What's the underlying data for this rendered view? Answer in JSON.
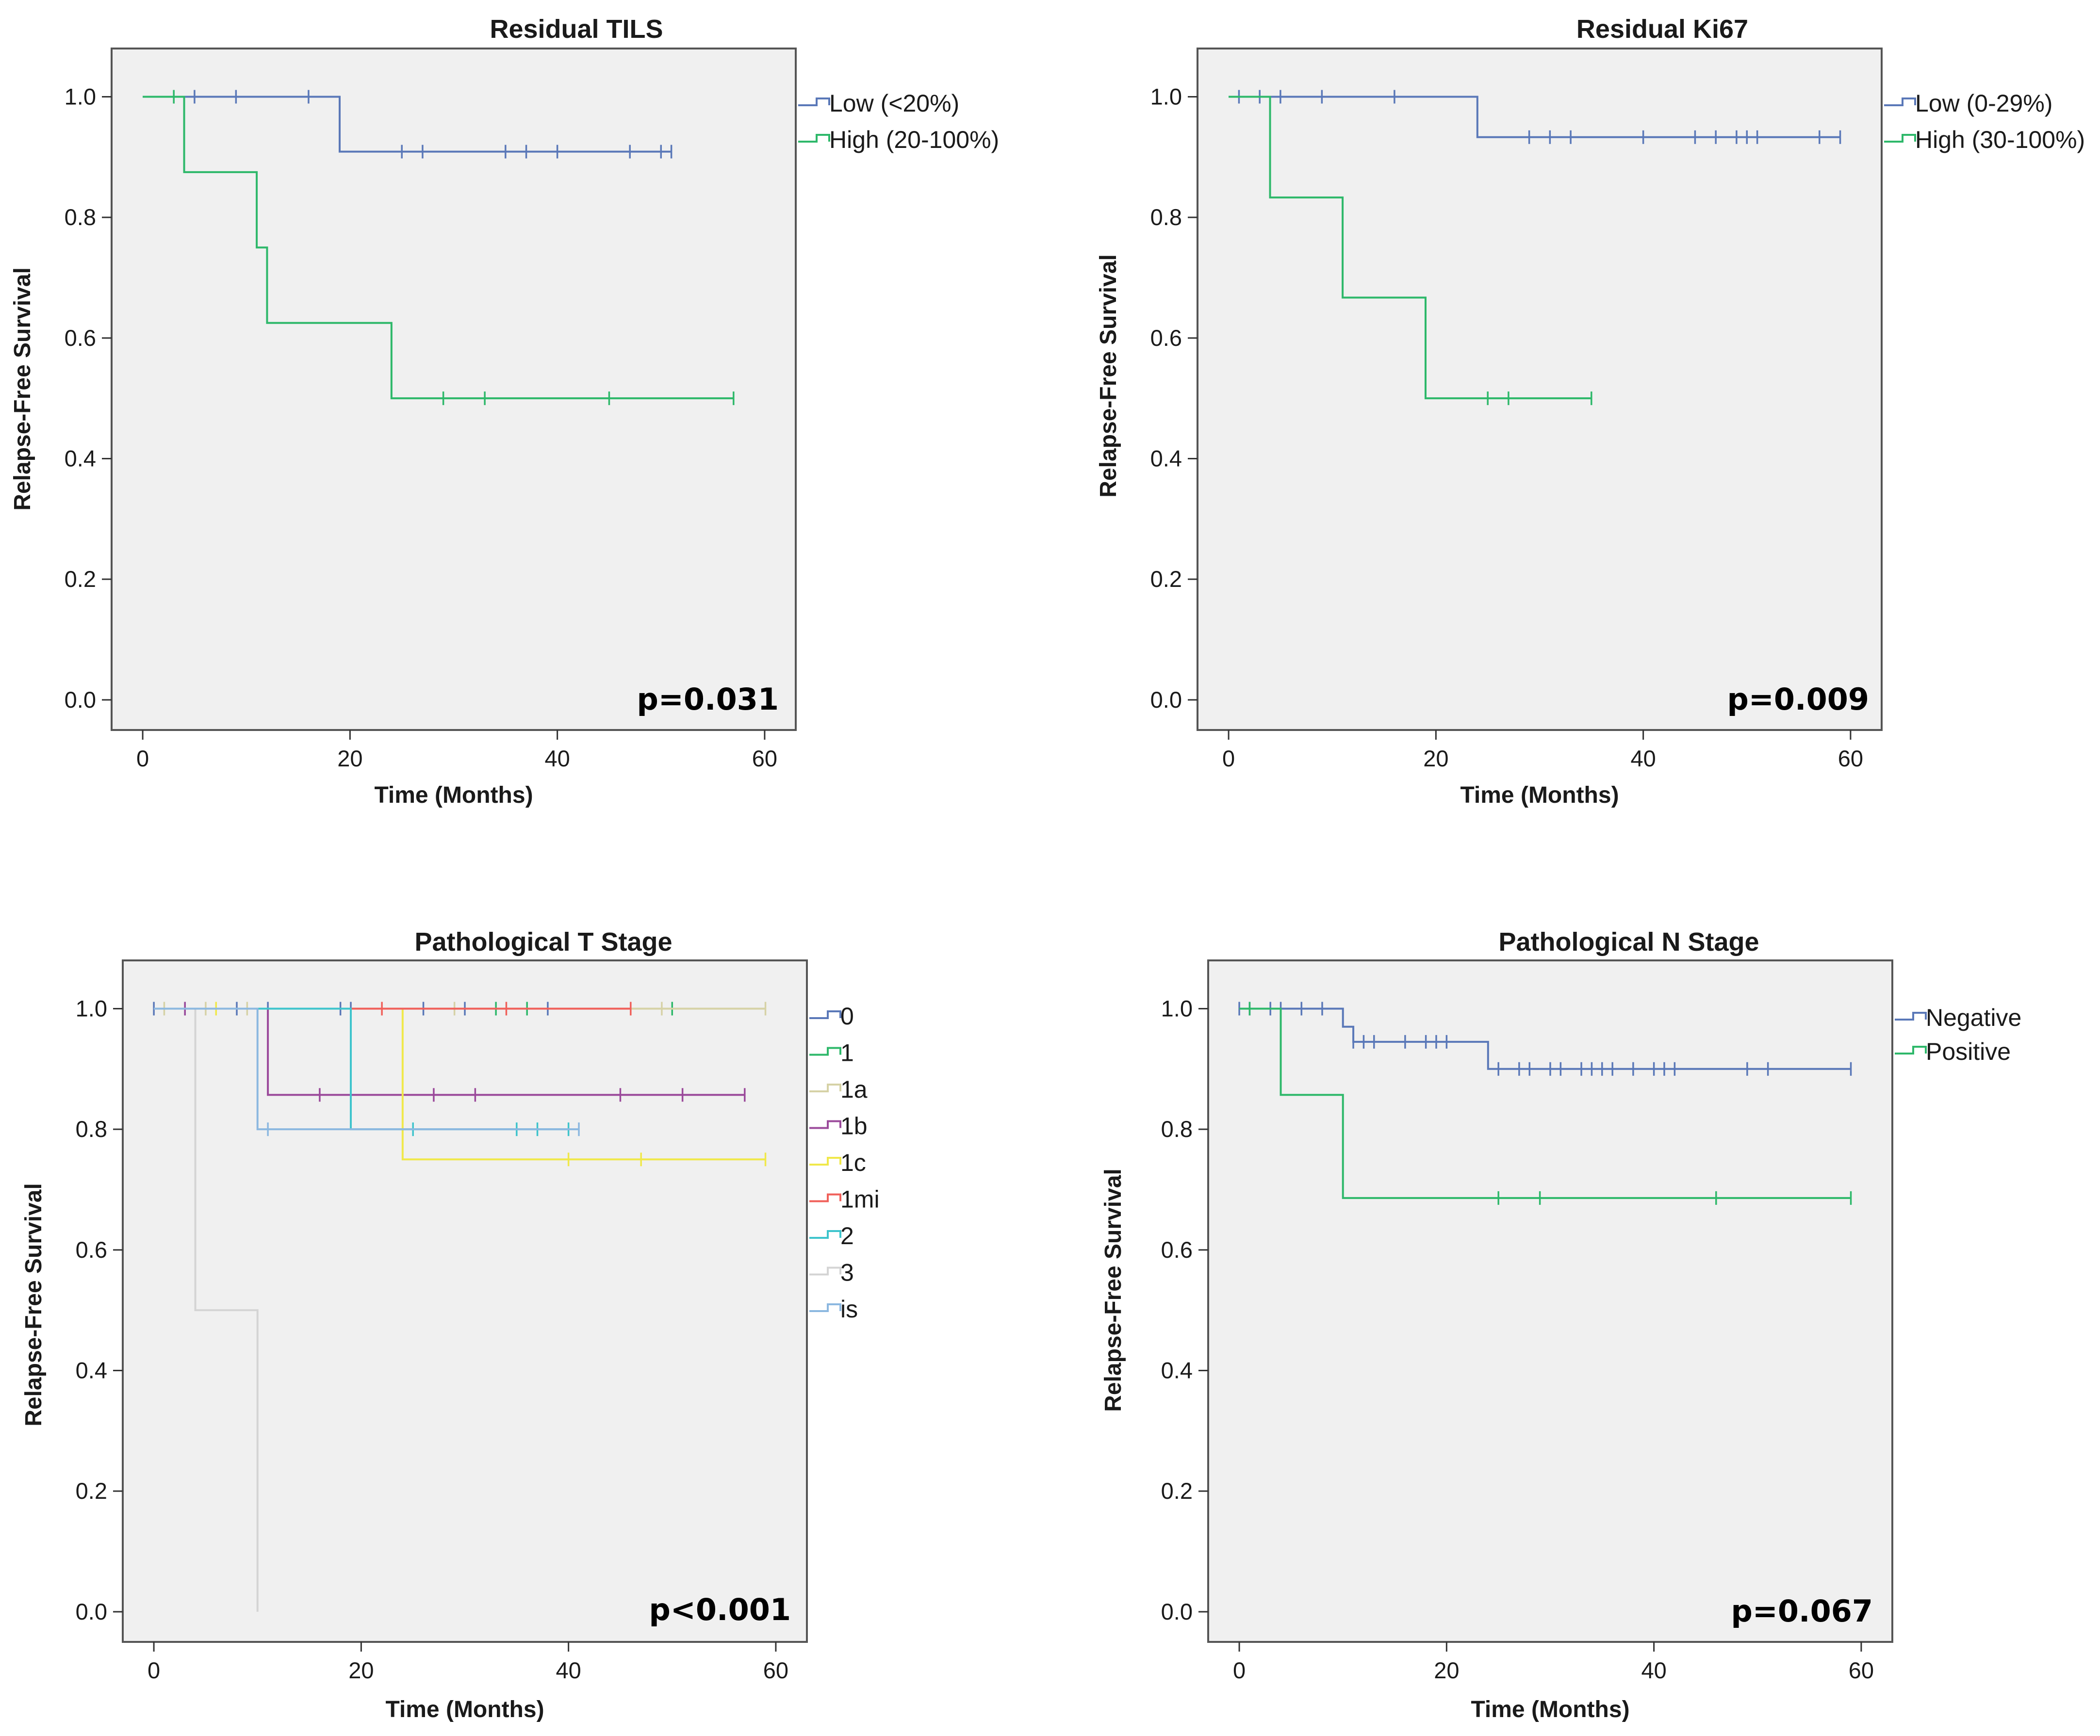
{
  "chart_data": [
    {
      "type": "line",
      "subtype": "kaplan-meier",
      "title": "Residual TILS",
      "xlabel": "Time (Months)",
      "ylabel": "Relapse-Free Survival",
      "xlim": [
        -3,
        63
      ],
      "ylim": [
        -0.05,
        1.08
      ],
      "xticks": [
        0,
        20,
        40,
        60
      ],
      "xtick_labels": [
        "0",
        "20",
        "40",
        "60"
      ],
      "yticks": [
        0,
        0.2,
        0.4,
        0.6,
        0.8,
        1.0
      ],
      "ytick_labels": [
        "0.0",
        "0.2",
        "0.4",
        "0.6",
        "0.8",
        "1.0"
      ],
      "p_value": "p=0.031",
      "legend_position": "right-outside-top",
      "series": [
        {
          "name": "Low (<20%)",
          "color": "#5a78b8",
          "steps": [
            [
              0,
              1.0
            ],
            [
              19,
              0.909
            ],
            [
              51,
              0.909
            ]
          ],
          "censored": [
            [
              5,
              1.0
            ],
            [
              9,
              1.0
            ],
            [
              16,
              1.0
            ],
            [
              25,
              0.909
            ],
            [
              27,
              0.909
            ],
            [
              35,
              0.909
            ],
            [
              37,
              0.909
            ],
            [
              40,
              0.909
            ],
            [
              47,
              0.909
            ],
            [
              50,
              0.909
            ],
            [
              51,
              0.909
            ]
          ]
        },
        {
          "name": "High (20-100%)",
          "color": "#2eb86a",
          "steps": [
            [
              0,
              1.0
            ],
            [
              4,
              0.875
            ],
            [
              11,
              0.75
            ],
            [
              12,
              0.625
            ],
            [
              24,
              0.5
            ],
            [
              57,
              0.5
            ]
          ],
          "censored": [
            [
              3,
              1.0
            ],
            [
              29,
              0.5
            ],
            [
              33,
              0.5
            ],
            [
              45,
              0.5
            ],
            [
              57,
              0.5
            ]
          ]
        }
      ]
    },
    {
      "type": "line",
      "subtype": "kaplan-meier",
      "title": "Residual Ki67",
      "xlabel": "Time (Months)",
      "ylabel": "Relapse-Free Survival",
      "xlim": [
        -3,
        63
      ],
      "ylim": [
        -0.05,
        1.08
      ],
      "xticks": [
        0,
        20,
        40,
        60
      ],
      "xtick_labels": [
        "0",
        "20",
        "40",
        "60"
      ],
      "yticks": [
        0,
        0.2,
        0.4,
        0.6,
        0.8,
        1.0
      ],
      "ytick_labels": [
        "0.0",
        "0.2",
        "0.4",
        "0.6",
        "0.8",
        "1.0"
      ],
      "p_value": "p=0.009",
      "legend_position": "right-outside-top",
      "series": [
        {
          "name": "Low (0-29%)",
          "color": "#5a78b8",
          "steps": [
            [
              0,
              1.0
            ],
            [
              24,
              0.933
            ],
            [
              59,
              0.933
            ]
          ],
          "censored": [
            [
              1,
              1.0
            ],
            [
              3,
              1.0
            ],
            [
              5,
              1.0
            ],
            [
              9,
              1.0
            ],
            [
              16,
              1.0
            ],
            [
              29,
              0.933
            ],
            [
              31,
              0.933
            ],
            [
              33,
              0.933
            ],
            [
              40,
              0.933
            ],
            [
              45,
              0.933
            ],
            [
              47,
              0.933
            ],
            [
              49,
              0.933
            ],
            [
              50,
              0.933
            ],
            [
              51,
              0.933
            ],
            [
              57,
              0.933
            ],
            [
              59,
              0.933
            ]
          ]
        },
        {
          "name": "High (30-100%)",
          "color": "#2eb86a",
          "steps": [
            [
              0,
              1.0
            ],
            [
              4,
              0.833
            ],
            [
              11,
              0.667
            ],
            [
              19,
              0.5
            ],
            [
              35,
              0.5
            ]
          ],
          "censored": [
            [
              25,
              0.5
            ],
            [
              27,
              0.5
            ],
            [
              35,
              0.5
            ]
          ]
        }
      ]
    },
    {
      "type": "line",
      "subtype": "kaplan-meier",
      "title": "Pathological T Stage",
      "xlabel": "Time (Months)",
      "ylabel": "Relapse-Free Survival",
      "xlim": [
        -3,
        63
      ],
      "ylim": [
        -0.05,
        1.08
      ],
      "xticks": [
        0,
        20,
        40,
        60
      ],
      "xtick_labels": [
        "0",
        "20",
        "40",
        "60"
      ],
      "yticks": [
        0,
        0.2,
        0.4,
        0.6,
        0.8,
        1.0
      ],
      "ytick_labels": [
        "0.0",
        "0.2",
        "0.4",
        "0.6",
        "0.8",
        "1.0"
      ],
      "p_value": "p<0.001",
      "legend_position": "right-outside-top",
      "series": [
        {
          "name": "0",
          "color": "#5a78b8",
          "steps": [
            [
              0,
              1.0
            ],
            [
              41,
              1.0
            ]
          ],
          "censored": [
            [
              0,
              1.0
            ],
            [
              3,
              1.0
            ],
            [
              8,
              1.0
            ],
            [
              11,
              1.0
            ],
            [
              18,
              1.0
            ],
            [
              19,
              1.0
            ],
            [
              26,
              1.0
            ],
            [
              30,
              1.0
            ],
            [
              38,
              1.0
            ]
          ]
        },
        {
          "name": "1",
          "color": "#2eb86a",
          "steps": [
            [
              0,
              1.0
            ],
            [
              50,
              1.0
            ]
          ],
          "censored": [
            [
              33,
              1.0
            ],
            [
              36,
              1.0
            ],
            [
              50,
              1.0
            ]
          ]
        },
        {
          "name": "1a",
          "color": "#d6d2a6",
          "steps": [
            [
              0,
              1.0
            ],
            [
              59,
              1.0
            ]
          ],
          "censored": [
            [
              1,
              1.0
            ],
            [
              5,
              1.0
            ],
            [
              9,
              1.0
            ],
            [
              29,
              1.0
            ],
            [
              49,
              1.0
            ],
            [
              59,
              1.0
            ]
          ]
        },
        {
          "name": "1b",
          "color": "#9b4a9b",
          "steps": [
            [
              0,
              1.0
            ],
            [
              11,
              0.857
            ],
            [
              57,
              0.857
            ]
          ],
          "censored": [
            [
              3,
              1.0
            ],
            [
              16,
              0.857
            ],
            [
              27,
              0.857
            ],
            [
              31,
              0.857
            ],
            [
              45,
              0.857
            ],
            [
              51,
              0.857
            ],
            [
              57,
              0.857
            ]
          ]
        },
        {
          "name": "1c",
          "color": "#f0e84a",
          "steps": [
            [
              0,
              1.0
            ],
            [
              24,
              0.75
            ],
            [
              59,
              0.75
            ]
          ],
          "censored": [
            [
              6,
              1.0
            ],
            [
              40,
              0.75
            ],
            [
              47,
              0.75
            ],
            [
              59,
              0.75
            ]
          ]
        },
        {
          "name": "1mi",
          "color": "#f0605a",
          "steps": [
            [
              0,
              1.0
            ],
            [
              46,
              1.0
            ]
          ],
          "censored": [
            [
              22,
              1.0
            ],
            [
              34,
              1.0
            ],
            [
              46,
              1.0
            ]
          ]
        },
        {
          "name": "2",
          "color": "#3ec4cc",
          "steps": [
            [
              0,
              1.0
            ],
            [
              19,
              0.8
            ],
            [
              40,
              0.8
            ]
          ],
          "censored": [
            [
              25,
              0.8
            ],
            [
              35,
              0.8
            ],
            [
              37,
              0.8
            ],
            [
              40,
              0.8
            ]
          ]
        },
        {
          "name": "3",
          "color": "#d4d4d4",
          "steps": [
            [
              0,
              1.0
            ],
            [
              4,
              0.5
            ],
            [
              10,
              0.0
            ]
          ],
          "censored": []
        },
        {
          "name": "is",
          "color": "#8cb8e0",
          "steps": [
            [
              0,
              1.0
            ],
            [
              10,
              0.8
            ],
            [
              41,
              0.8
            ]
          ],
          "censored": [
            [
              11,
              0.8
            ],
            [
              41,
              0.8
            ]
          ]
        }
      ]
    },
    {
      "type": "line",
      "subtype": "kaplan-meier",
      "title": "Pathological N Stage",
      "xlabel": "Time (Months)",
      "ylabel": "Relapse-Free Survival",
      "xlim": [
        -3,
        63
      ],
      "ylim": [
        -0.05,
        1.08
      ],
      "xticks": [
        0,
        20,
        40,
        60
      ],
      "xtick_labels": [
        "0",
        "20",
        "40",
        "60"
      ],
      "yticks": [
        0,
        0.2,
        0.4,
        0.6,
        0.8,
        1.0
      ],
      "ytick_labels": [
        "0.0",
        "0.2",
        "0.4",
        "0.6",
        "0.8",
        "1.0"
      ],
      "p_value": "p=0.067",
      "legend_position": "right-outside-top",
      "series": [
        {
          "name": "Negative",
          "color": "#5a78b8",
          "steps": [
            [
              0,
              1.0
            ],
            [
              10,
              0.97
            ],
            [
              11,
              0.945
            ],
            [
              24,
              0.9
            ],
            [
              59,
              0.9
            ]
          ],
          "censored": [
            [
              0,
              1.0
            ],
            [
              1,
              1.0
            ],
            [
              3,
              1.0
            ],
            [
              4,
              1.0
            ],
            [
              6,
              1.0
            ],
            [
              8,
              1.0
            ],
            [
              11,
              0.945
            ],
            [
              12,
              0.945
            ],
            [
              13,
              0.945
            ],
            [
              16,
              0.945
            ],
            [
              18,
              0.945
            ],
            [
              19,
              0.945
            ],
            [
              20,
              0.945
            ],
            [
              25,
              0.9
            ],
            [
              27,
              0.9
            ],
            [
              28,
              0.9
            ],
            [
              30,
              0.9
            ],
            [
              31,
              0.9
            ],
            [
              33,
              0.9
            ],
            [
              34,
              0.9
            ],
            [
              35,
              0.9
            ],
            [
              36,
              0.9
            ],
            [
              38,
              0.9
            ],
            [
              40,
              0.9
            ],
            [
              41,
              0.9
            ],
            [
              42,
              0.9
            ],
            [
              49,
              0.9
            ],
            [
              51,
              0.9
            ],
            [
              59,
              0.9
            ]
          ]
        },
        {
          "name": "Positive",
          "color": "#2eb86a",
          "steps": [
            [
              0,
              1.0
            ],
            [
              4,
              0.857
            ],
            [
              10,
              0.686
            ],
            [
              59,
              0.686
            ]
          ],
          "censored": [
            [
              1,
              1.0
            ],
            [
              25,
              0.686
            ],
            [
              29,
              0.686
            ],
            [
              46,
              0.686
            ],
            [
              59,
              0.686
            ]
          ]
        }
      ]
    }
  ]
}
